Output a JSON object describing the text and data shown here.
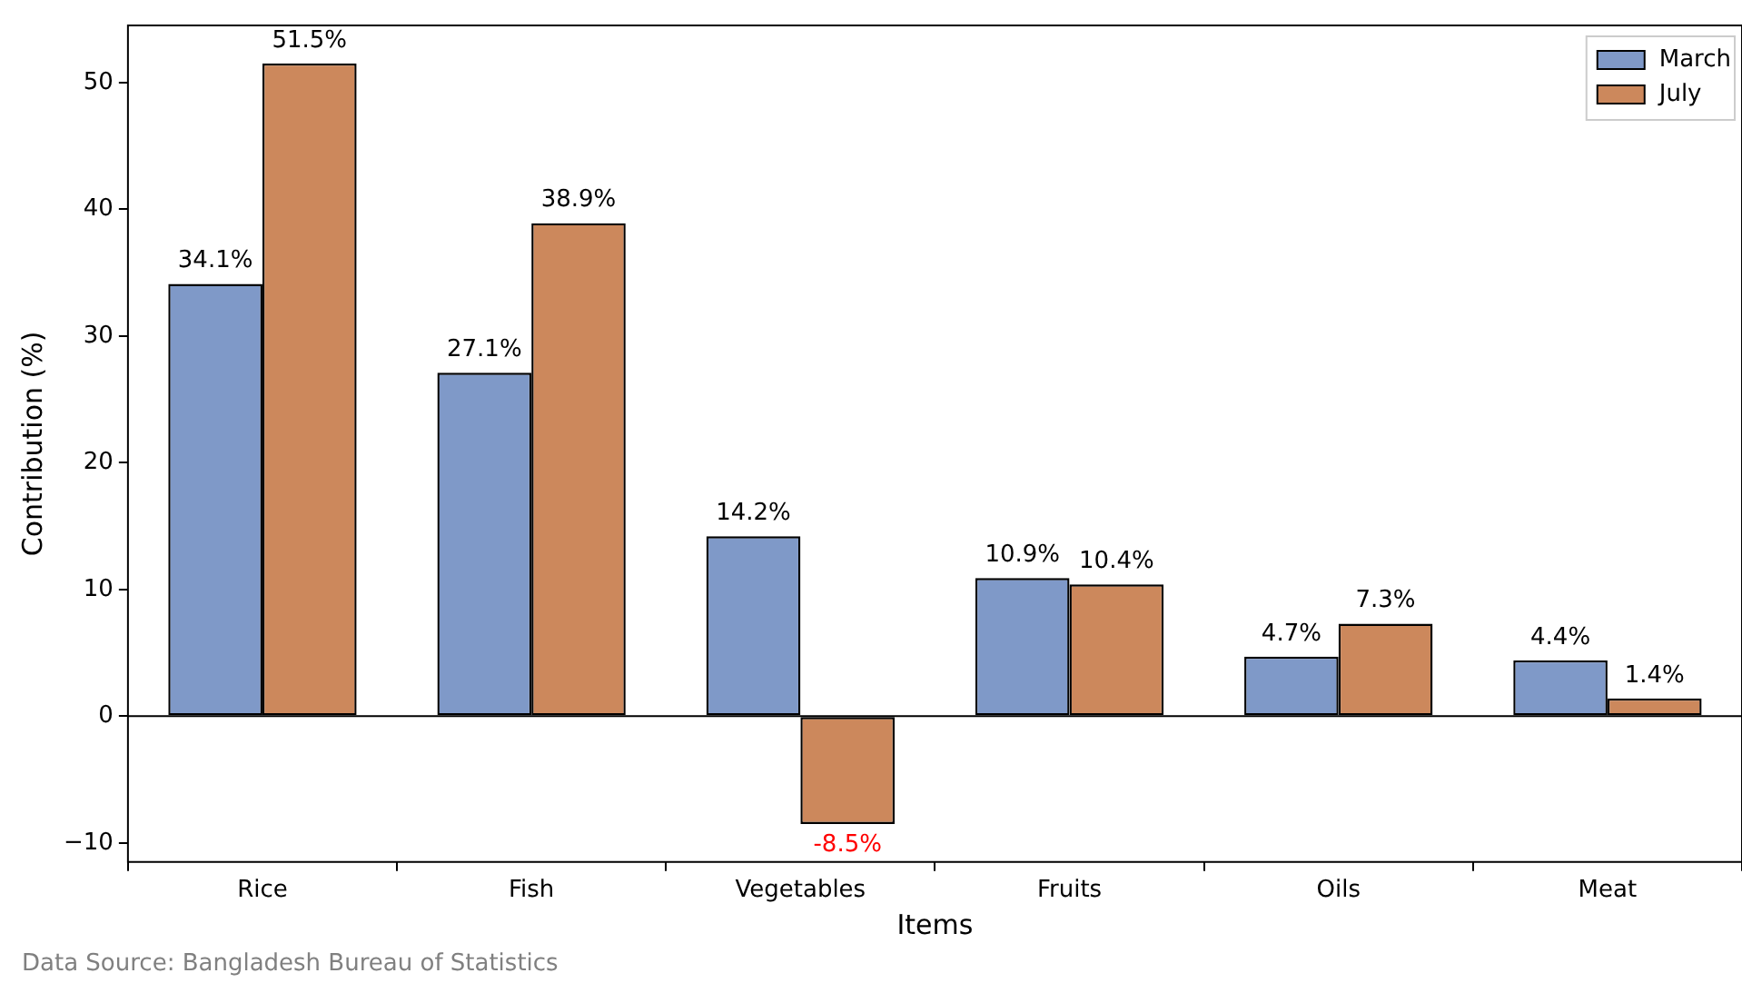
{
  "chart_data": {
    "type": "bar",
    "xlabel": "Items",
    "ylabel": "Contribution (%)",
    "categories": [
      "Rice",
      "Fish",
      "Vegetables",
      "Fruits",
      "Oils",
      "Meat"
    ],
    "series": [
      {
        "name": "March",
        "color": "#7f99c8",
        "values": [
          34.1,
          27.1,
          14.2,
          10.9,
          4.7,
          4.4
        ],
        "value_labels": [
          "34.1%",
          "27.1%",
          "14.2%",
          "10.9%",
          "4.7%",
          "4.4%"
        ]
      },
      {
        "name": "July",
        "color": "#cc885c",
        "values": [
          51.5,
          38.9,
          -8.5,
          10.4,
          7.3,
          1.4
        ],
        "value_labels": [
          "51.5%",
          "38.9%",
          "-8.5%",
          "10.4%",
          "7.3%",
          "1.4%"
        ]
      }
    ],
    "ylim": [
      -11.5,
      54.5
    ],
    "yticks": [
      -10,
      0,
      10,
      20,
      30,
      40,
      50
    ],
    "ref_lines": [
      {
        "axis": "y",
        "value": 0,
        "color": "#000000"
      }
    ],
    "grid": false,
    "legend": "top right",
    "annotations": [
      "Data Source: Bangladesh Bureau of Statistics"
    ]
  }
}
